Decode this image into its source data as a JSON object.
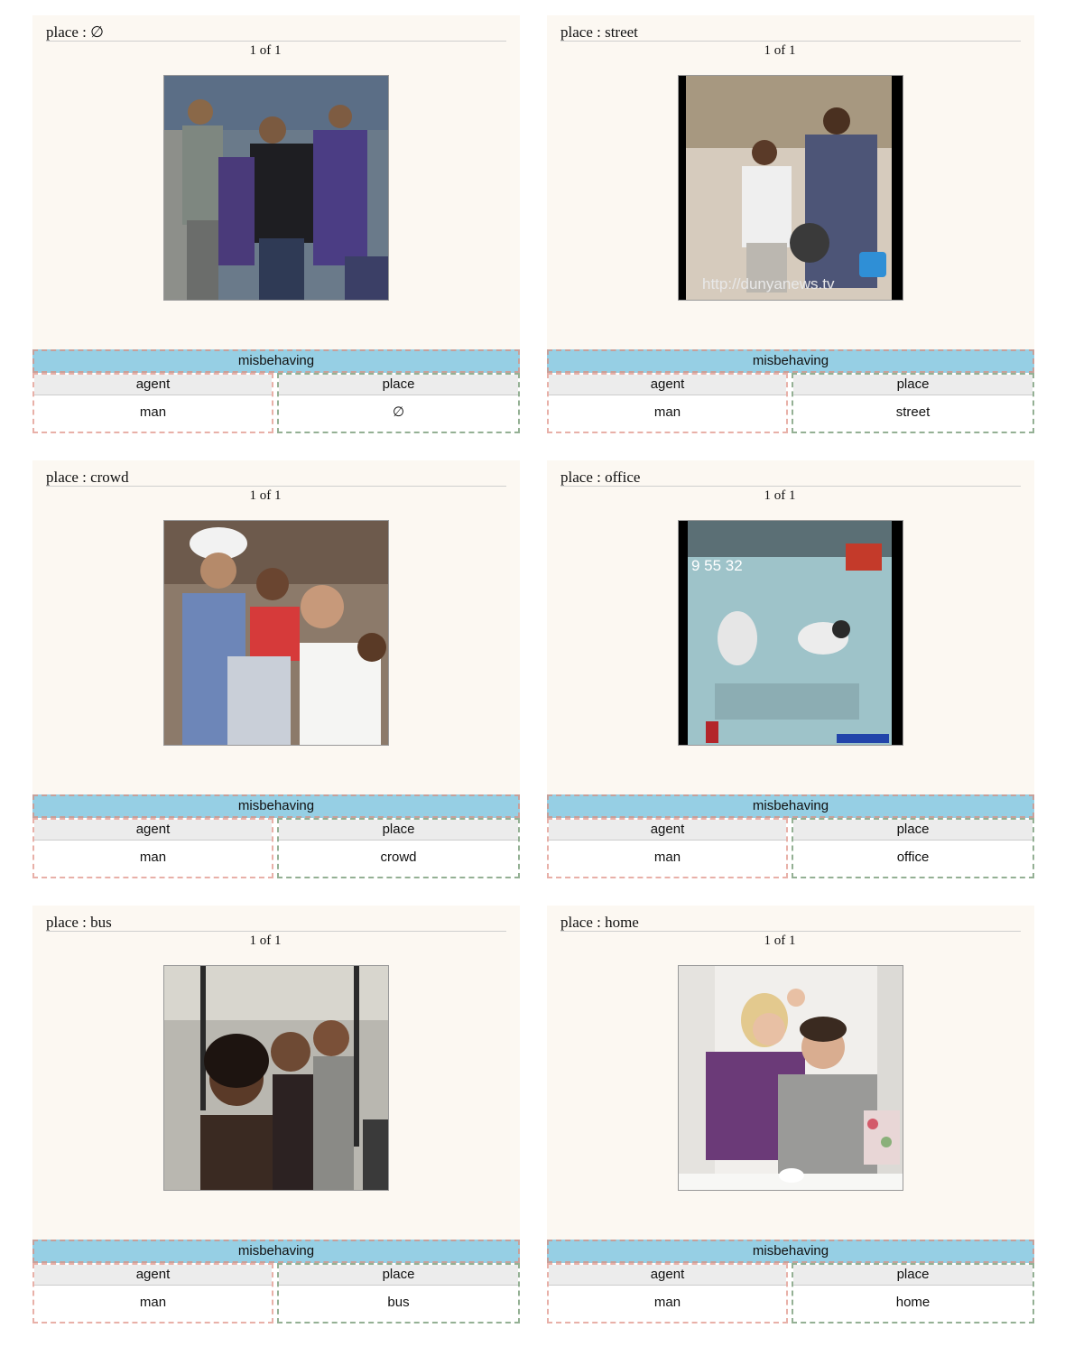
{
  "cards": [
    {
      "title": "place : ∅",
      "counter": "1 of 1",
      "verb": "misbehaving",
      "agent_head": "agent",
      "place_head": "place",
      "agent": "man",
      "place": "∅",
      "watermark": ""
    },
    {
      "title": "place : street",
      "counter": "1 of 1",
      "verb": "misbehaving",
      "agent_head": "agent",
      "place_head": "place",
      "agent": "man",
      "place": "street",
      "watermark": "http://dunyanews.tv"
    },
    {
      "title": "place : crowd",
      "counter": "1 of 1",
      "verb": "misbehaving",
      "agent_head": "agent",
      "place_head": "place",
      "agent": "man",
      "place": "crowd",
      "watermark": ""
    },
    {
      "title": "place : office",
      "counter": "1 of 1",
      "verb": "misbehaving",
      "agent_head": "agent",
      "place_head": "place",
      "agent": "man",
      "place": "office",
      "watermark": "9 55 32"
    },
    {
      "title": "place : bus",
      "counter": "1 of 1",
      "verb": "misbehaving",
      "agent_head": "agent",
      "place_head": "place",
      "agent": "man",
      "place": "bus",
      "watermark": ""
    },
    {
      "title": "place : home",
      "counter": "1 of 1",
      "verb": "misbehaving",
      "agent_head": "agent",
      "place_head": "place",
      "agent": "man",
      "place": "home",
      "watermark": ""
    }
  ]
}
